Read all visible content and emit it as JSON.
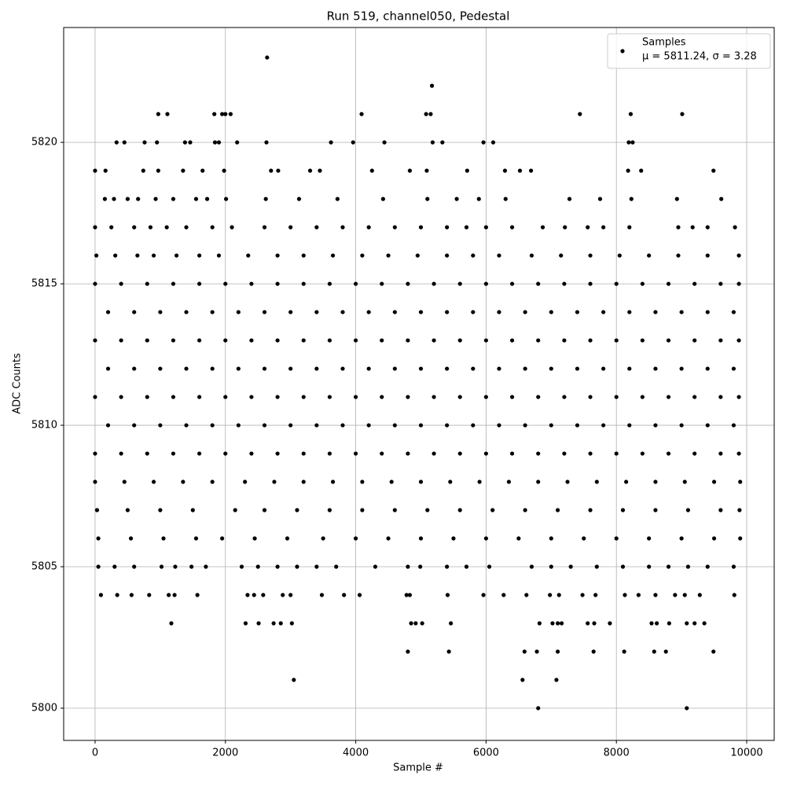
{
  "chart_data": {
    "type": "scatter",
    "title": "Run 519, channel050, Pedestal",
    "xlabel": "Sample #",
    "ylabel": "ADC Counts",
    "xlim": [
      -482,
      10422
    ],
    "ylim": [
      5798.86,
      5824.06
    ],
    "xticks": [
      0,
      2000,
      4000,
      6000,
      8000,
      10000
    ],
    "yticks": [
      5800,
      5805,
      5810,
      5815,
      5820
    ],
    "grid": true,
    "legend_position": "upper right",
    "legend_annotation": "μ = 5811.24, σ = 3.28",
    "series": [
      {
        "name": "Samples",
        "color": "#000000",
        "x": [
          2640,
          5170,
          970,
          1110,
          1830,
          1950,
          2000,
          2080,
          4090,
          5080,
          5150,
          7440,
          8220,
          9010,
          330,
          450,
          760,
          950,
          1380,
          1460,
          1840,
          1900,
          2180,
          2630,
          3620,
          3960,
          4440,
          5180,
          5330,
          5960,
          6110,
          8190,
          8250,
          0,
          160,
          740,
          970,
          1350,
          1650,
          1980,
          2700,
          2810,
          3300,
          3450,
          4250,
          4830,
          5090,
          5710,
          6290,
          6520,
          6690,
          8180,
          8380,
          9490,
          150,
          290,
          500,
          660,
          930,
          1200,
          1550,
          1720,
          2010,
          2620,
          3130,
          3720,
          4420,
          5100,
          5550,
          5890,
          6300,
          7280,
          7750,
          8230,
          8930,
          9610,
          0,
          250,
          600,
          850,
          1100,
          1400,
          1800,
          2100,
          2600,
          3000,
          3400,
          3800,
          4200,
          4600,
          5000,
          5400,
          5700,
          6000,
          6400,
          6870,
          7210,
          7560,
          7800,
          8200,
          8950,
          9170,
          9400,
          9820,
          20,
          310,
          650,
          900,
          1250,
          1600,
          1900,
          2350,
          2800,
          3200,
          3650,
          4100,
          4500,
          4950,
          5400,
          5800,
          6200,
          6700,
          7150,
          7600,
          8050,
          8500,
          8950,
          9400,
          9880,
          0,
          400,
          800,
          1200,
          1600,
          2000,
          2400,
          2800,
          3200,
          3600,
          4000,
          4400,
          4800,
          5200,
          5600,
          6000,
          6400,
          6800,
          7200,
          7600,
          8000,
          8400,
          8800,
          9200,
          9600,
          9880,
          200,
          600,
          1000,
          1400,
          1800,
          2200,
          2600,
          3000,
          3400,
          3800,
          4200,
          4600,
          5000,
          5400,
          5800,
          6200,
          6600,
          7000,
          7400,
          7800,
          8200,
          8600,
          9000,
          9400,
          9800,
          0,
          400,
          800,
          1200,
          1600,
          2000,
          2400,
          2800,
          3200,
          3600,
          4000,
          4400,
          4800,
          5200,
          5600,
          6000,
          6400,
          6800,
          7200,
          7600,
          8000,
          8400,
          8800,
          9200,
          9600,
          9880,
          200,
          600,
          1000,
          1400,
          1800,
          2200,
          2600,
          3000,
          3400,
          3800,
          4200,
          4600,
          5000,
          5400,
          5800,
          6200,
          6600,
          7000,
          7400,
          7800,
          8200,
          8600,
          9000,
          9400,
          9800,
          0,
          400,
          800,
          1200,
          1600,
          2000,
          2400,
          2800,
          3200,
          3600,
          4000,
          4400,
          4800,
          5200,
          5600,
          6000,
          6400,
          6800,
          7200,
          7600,
          8000,
          8400,
          8800,
          9200,
          9600,
          9880,
          200,
          600,
          1000,
          1400,
          1800,
          2200,
          2600,
          3000,
          3400,
          3800,
          4200,
          4600,
          5000,
          5400,
          5800,
          6200,
          6600,
          7000,
          7400,
          7800,
          8200,
          8600,
          9000,
          9400,
          9800,
          0,
          400,
          800,
          1200,
          1600,
          2000,
          2400,
          2800,
          3200,
          3600,
          4000,
          4400,
          4800,
          5200,
          5600,
          6000,
          6400,
          6800,
          7200,
          7600,
          8000,
          8400,
          8800,
          9200,
          9600,
          9880,
          0,
          450,
          900,
          1350,
          1800,
          2300,
          2750,
          3200,
          3650,
          4100,
          4550,
          5000,
          5450,
          5900,
          6350,
          6800,
          7250,
          7700,
          8150,
          8600,
          9050,
          9500,
          9900,
          30,
          500,
          1000,
          1500,
          2150,
          2600,
          3100,
          3600,
          4100,
          4600,
          5100,
          5600,
          6100,
          6600,
          7100,
          7600,
          8100,
          8600,
          9100,
          9600,
          9890,
          50,
          550,
          1050,
          1550,
          1950,
          2450,
          2950,
          3500,
          4000,
          4500,
          5000,
          5500,
          6000,
          6500,
          7000,
          7500,
          8000,
          8500,
          9000,
          9500,
          9900,
          50,
          300,
          600,
          1020,
          1230,
          1480,
          1700,
          2250,
          2500,
          2800,
          3100,
          3400,
          3700,
          4300,
          4800,
          4990,
          5400,
          5700,
          6050,
          6700,
          7000,
          7300,
          7700,
          8100,
          8500,
          8800,
          9100,
          9400,
          9800,
          90,
          340,
          560,
          830,
          1130,
          1220,
          1570,
          2340,
          2440,
          2580,
          2880,
          3000,
          3480,
          3820,
          4060,
          4780,
          4830,
          5410,
          5960,
          6270,
          6620,
          6980,
          7120,
          7480,
          7680,
          8130,
          8340,
          8600,
          8900,
          9050,
          9280,
          9810,
          1170,
          2310,
          2510,
          2740,
          2850,
          3020,
          4850,
          4920,
          5020,
          5460,
          6820,
          7020,
          7100,
          7160,
          7560,
          7660,
          7900,
          8540,
          8620,
          8810,
          9080,
          9200,
          9350,
          4800,
          5430,
          6590,
          6780,
          7100,
          7650,
          8120,
          8580,
          8760,
          9490,
          3050,
          6560,
          7080,
          6800,
          9080
        ],
        "values": [
          5823,
          5822,
          5821,
          5821,
          5821,
          5821,
          5821,
          5821,
          5821,
          5821,
          5821,
          5821,
          5821,
          5821,
          5820,
          5820,
          5820,
          5820,
          5820,
          5820,
          5820,
          5820,
          5820,
          5820,
          5820,
          5820,
          5820,
          5820,
          5820,
          5820,
          5820,
          5820,
          5820,
          5819,
          5819,
          5819,
          5819,
          5819,
          5819,
          5819,
          5819,
          5819,
          5819,
          5819,
          5819,
          5819,
          5819,
          5819,
          5819,
          5819,
          5819,
          5819,
          5819,
          5819,
          5818,
          5818,
          5818,
          5818,
          5818,
          5818,
          5818,
          5818,
          5818,
          5818,
          5818,
          5818,
          5818,
          5818,
          5818,
          5818,
          5818,
          5818,
          5818,
          5818,
          5818,
          5818,
          5817,
          5817,
          5817,
          5817,
          5817,
          5817,
          5817,
          5817,
          5817,
          5817,
          5817,
          5817,
          5817,
          5817,
          5817,
          5817,
          5817,
          5817,
          5817,
          5817,
          5817,
          5817,
          5817,
          5817,
          5817,
          5817,
          5817,
          5817,
          5816,
          5816,
          5816,
          5816,
          5816,
          5816,
          5816,
          5816,
          5816,
          5816,
          5816,
          5816,
          5816,
          5816,
          5816,
          5816,
          5816,
          5816,
          5816,
          5816,
          5816,
          5816,
          5816,
          5816,
          5816,
          5815,
          5815,
          5815,
          5815,
          5815,
          5815,
          5815,
          5815,
          5815,
          5815,
          5815,
          5815,
          5815,
          5815,
          5815,
          5815,
          5815,
          5815,
          5815,
          5815,
          5815,
          5815,
          5815,
          5815,
          5815,
          5815,
          5814,
          5814,
          5814,
          5814,
          5814,
          5814,
          5814,
          5814,
          5814,
          5814,
          5814,
          5814,
          5814,
          5814,
          5814,
          5814,
          5814,
          5814,
          5814,
          5814,
          5814,
          5814,
          5814,
          5814,
          5814,
          5813,
          5813,
          5813,
          5813,
          5813,
          5813,
          5813,
          5813,
          5813,
          5813,
          5813,
          5813,
          5813,
          5813,
          5813,
          5813,
          5813,
          5813,
          5813,
          5813,
          5813,
          5813,
          5813,
          5813,
          5813,
          5813,
          5812,
          5812,
          5812,
          5812,
          5812,
          5812,
          5812,
          5812,
          5812,
          5812,
          5812,
          5812,
          5812,
          5812,
          5812,
          5812,
          5812,
          5812,
          5812,
          5812,
          5812,
          5812,
          5812,
          5812,
          5812,
          5811,
          5811,
          5811,
          5811,
          5811,
          5811,
          5811,
          5811,
          5811,
          5811,
          5811,
          5811,
          5811,
          5811,
          5811,
          5811,
          5811,
          5811,
          5811,
          5811,
          5811,
          5811,
          5811,
          5811,
          5811,
          5811,
          5810,
          5810,
          5810,
          5810,
          5810,
          5810,
          5810,
          5810,
          5810,
          5810,
          5810,
          5810,
          5810,
          5810,
          5810,
          5810,
          5810,
          5810,
          5810,
          5810,
          5810,
          5810,
          5810,
          5810,
          5810,
          5809,
          5809,
          5809,
          5809,
          5809,
          5809,
          5809,
          5809,
          5809,
          5809,
          5809,
          5809,
          5809,
          5809,
          5809,
          5809,
          5809,
          5809,
          5809,
          5809,
          5809,
          5809,
          5809,
          5809,
          5809,
          5809,
          5808,
          5808,
          5808,
          5808,
          5808,
          5808,
          5808,
          5808,
          5808,
          5808,
          5808,
          5808,
          5808,
          5808,
          5808,
          5808,
          5808,
          5808,
          5808,
          5808,
          5808,
          5808,
          5808,
          5807,
          5807,
          5807,
          5807,
          5807,
          5807,
          5807,
          5807,
          5807,
          5807,
          5807,
          5807,
          5807,
          5807,
          5807,
          5807,
          5807,
          5807,
          5807,
          5807,
          5807,
          5806,
          5806,
          5806,
          5806,
          5806,
          5806,
          5806,
          5806,
          5806,
          5806,
          5806,
          5806,
          5806,
          5806,
          5806,
          5806,
          5806,
          5806,
          5806,
          5806,
          5806,
          5805,
          5805,
          5805,
          5805,
          5805,
          5805,
          5805,
          5805,
          5805,
          5805,
          5805,
          5805,
          5805,
          5805,
          5805,
          5805,
          5805,
          5805,
          5805,
          5805,
          5805,
          5805,
          5805,
          5805,
          5805,
          5805,
          5805,
          5805,
          5805,
          5804,
          5804,
          5804,
          5804,
          5804,
          5804,
          5804,
          5804,
          5804,
          5804,
          5804,
          5804,
          5804,
          5804,
          5804,
          5804,
          5804,
          5804,
          5804,
          5804,
          5804,
          5804,
          5804,
          5804,
          5804,
          5804,
          5804,
          5804,
          5804,
          5804,
          5804,
          5804,
          5803,
          5803,
          5803,
          5803,
          5803,
          5803,
          5803,
          5803,
          5803,
          5803,
          5803,
          5803,
          5803,
          5803,
          5803,
          5803,
          5803,
          5803,
          5803,
          5803,
          5803,
          5803,
          5803,
          5802,
          5802,
          5802,
          5802,
          5802,
          5802,
          5802,
          5802,
          5802,
          5802,
          5801,
          5801,
          5801,
          5800,
          5800
        ]
      }
    ]
  }
}
